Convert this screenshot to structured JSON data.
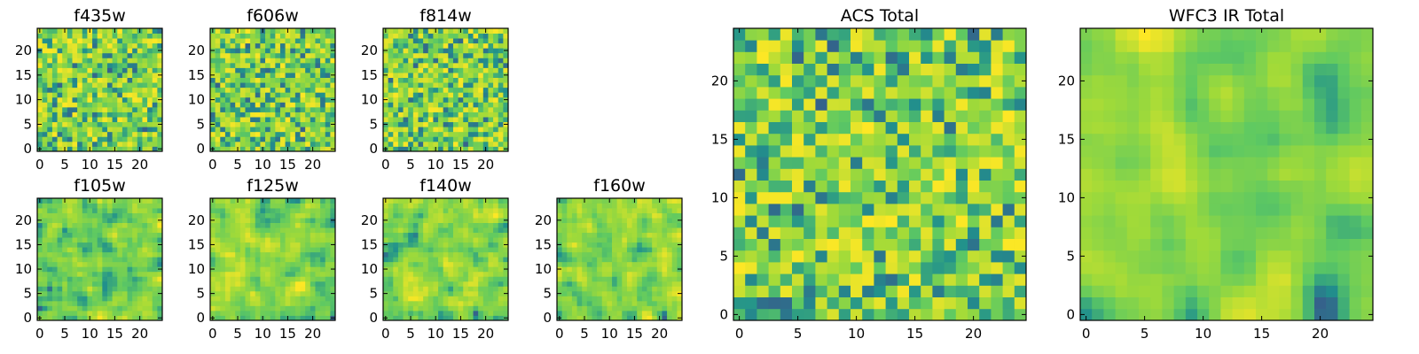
{
  "chart_data": [
    {
      "id": "f435w",
      "type": "heatmap",
      "title": "f435w",
      "xlim": [
        -0.5,
        24.5
      ],
      "ylim": [
        -0.5,
        24.5
      ],
      "xticks": [
        0,
        5,
        10,
        15,
        20
      ],
      "yticks": [
        0,
        5,
        10,
        15,
        20
      ],
      "grid_size": 25,
      "seed": 11,
      "smooth": 0,
      "colormap": "viridis"
    },
    {
      "id": "f606w",
      "type": "heatmap",
      "title": "f606w",
      "xlim": [
        -0.5,
        24.5
      ],
      "ylim": [
        -0.5,
        24.5
      ],
      "xticks": [
        0,
        5,
        10,
        15,
        20
      ],
      "yticks": [
        0,
        5,
        10,
        15,
        20
      ],
      "grid_size": 25,
      "seed": 23,
      "smooth": 0,
      "colormap": "viridis"
    },
    {
      "id": "f814w",
      "type": "heatmap",
      "title": "f814w",
      "xlim": [
        -0.5,
        24.5
      ],
      "ylim": [
        -0.5,
        24.5
      ],
      "xticks": [
        0,
        5,
        10,
        15,
        20
      ],
      "yticks": [
        0,
        5,
        10,
        15,
        20
      ],
      "grid_size": 25,
      "seed": 37,
      "smooth": 0,
      "colormap": "viridis"
    },
    {
      "id": "f105w",
      "type": "heatmap",
      "title": "f105w",
      "xlim": [
        -0.5,
        24.5
      ],
      "ylim": [
        -0.5,
        24.5
      ],
      "xticks": [
        0,
        5,
        10,
        15,
        20
      ],
      "yticks": [
        0,
        5,
        10,
        15,
        20
      ],
      "grid_size": 25,
      "seed": 41,
      "smooth": 1,
      "colormap": "viridis"
    },
    {
      "id": "f125w",
      "type": "heatmap",
      "title": "f125w",
      "xlim": [
        -0.5,
        24.5
      ],
      "ylim": [
        -0.5,
        24.5
      ],
      "xticks": [
        0,
        5,
        10,
        15,
        20
      ],
      "yticks": [
        0,
        5,
        10,
        15,
        20
      ],
      "grid_size": 25,
      "seed": 53,
      "smooth": 1,
      "colormap": "viridis"
    },
    {
      "id": "f140w",
      "type": "heatmap",
      "title": "f140w",
      "xlim": [
        -0.5,
        24.5
      ],
      "ylim": [
        -0.5,
        24.5
      ],
      "xticks": [
        0,
        5,
        10,
        15,
        20
      ],
      "yticks": [
        0,
        5,
        10,
        15,
        20
      ],
      "grid_size": 25,
      "seed": 67,
      "smooth": 1,
      "colormap": "viridis"
    },
    {
      "id": "f160w",
      "type": "heatmap",
      "title": "f160w",
      "xlim": [
        -0.5,
        24.5
      ],
      "ylim": [
        -0.5,
        24.5
      ],
      "xticks": [
        0,
        5,
        10,
        15,
        20
      ],
      "yticks": [
        0,
        5,
        10,
        15,
        20
      ],
      "grid_size": 25,
      "seed": 79,
      "smooth": 1,
      "colormap": "viridis"
    },
    {
      "id": "acs-total",
      "type": "heatmap",
      "title": "ACS Total",
      "xlim": [
        -0.5,
        24.5
      ],
      "ylim": [
        -0.5,
        24.5
      ],
      "xticks": [
        0,
        5,
        10,
        15,
        20
      ],
      "yticks": [
        0,
        5,
        10,
        15,
        20
      ],
      "grid_size": 25,
      "seed": 97,
      "smooth": 0,
      "colormap": "viridis"
    },
    {
      "id": "wfc3-ir-total",
      "type": "heatmap",
      "title": "WFC3 IR Total",
      "xlim": [
        -0.5,
        24.5
      ],
      "ylim": [
        -0.5,
        24.5
      ],
      "xticks": [
        0,
        5,
        10,
        15,
        20
      ],
      "yticks": [
        0,
        5,
        10,
        15,
        20
      ],
      "grid_size": 25,
      "seed": 131,
      "smooth": 2,
      "colormap": "viridis"
    }
  ],
  "colors": {
    "viridis_stops": [
      "#440154",
      "#3b528b",
      "#21918c",
      "#5ec962",
      "#a0da39",
      "#fde725"
    ]
  }
}
